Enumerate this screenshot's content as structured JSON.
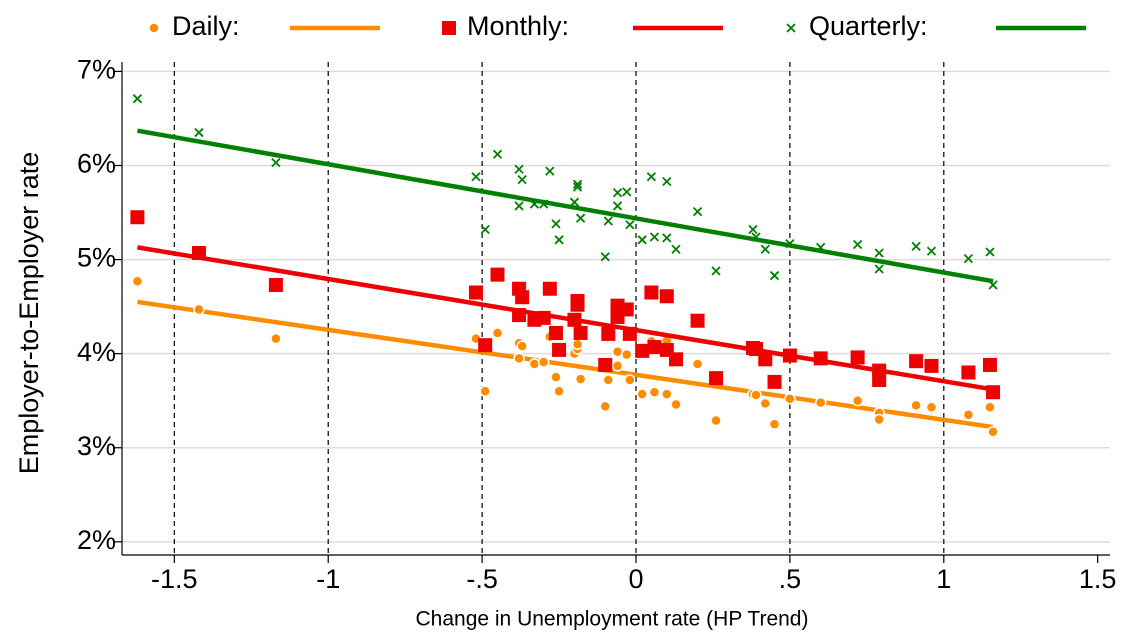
{
  "chart_data": {
    "type": "scatter",
    "x_label": "Change in Unemployment rate (HP Trend)",
    "y_label": "Employer-to-Employer rate",
    "legend": "top",
    "grid": true,
    "xlim": [
      -1.67,
      1.54
    ],
    "ylim": [
      1.86,
      7.1
    ],
    "xticks": [
      -1.5,
      -1,
      {
        "value": -0.5,
        "label": "-.5"
      },
      0,
      {
        "value": 0.5,
        "label": ".5"
      },
      1,
      1.5
    ],
    "yticks": [
      {
        "value": 2,
        "label": "2%"
      },
      {
        "value": 3,
        "label": "3%"
      },
      {
        "value": 4,
        "label": "4%"
      },
      {
        "value": 5,
        "label": "5%"
      },
      {
        "value": 6,
        "label": "6%"
      },
      {
        "value": 7,
        "label": "7%"
      }
    ],
    "vlines": [
      -1.5,
      -1,
      -0.5,
      0,
      0.5,
      1
    ],
    "x": [
      -1.62,
      -1.42,
      -1.17,
      -0.52,
      -0.49,
      -0.45,
      -0.38,
      -0.37,
      -0.38,
      -0.33,
      -0.3,
      -0.28,
      -0.26,
      -0.25,
      -0.2,
      -0.19,
      -0.19,
      -0.18,
      -0.1,
      -0.09,
      -0.06,
      -0.06,
      -0.03,
      -0.02,
      0.02,
      0.05,
      0.06,
      0.1,
      0.1,
      0.13,
      0.2,
      0.26,
      0.38,
      0.39,
      0.42,
      0.45,
      0.5,
      0.6,
      0.72,
      0.79,
      0.79,
      0.91,
      0.96,
      1.08,
      1.15,
      1.16
    ],
    "series": [
      {
        "name": "Daily:",
        "color": "#ff8c00",
        "marker": "circle",
        "values": [
          4.77,
          4.47,
          4.16,
          4.16,
          3.6,
          4.22,
          4.11,
          4.08,
          3.95,
          3.89,
          3.91,
          4.18,
          3.75,
          3.6,
          4.0,
          4.05,
          4.1,
          3.73,
          3.44,
          3.72,
          3.87,
          4.02,
          3.99,
          3.72,
          3.57,
          4.13,
          3.59,
          4.14,
          3.57,
          3.46,
          3.89,
          3.29,
          3.57,
          3.56,
          3.47,
          3.25,
          3.52,
          3.48,
          3.5,
          3.37,
          3.3,
          3.45,
          3.43,
          3.35,
          3.43,
          3.17
        ],
        "fit": {
          "x": [
            -1.62,
            1.16
          ],
          "values": [
            4.55,
            3.22
          ]
        }
      },
      {
        "name": "Monthly:",
        "color": "#ee0000",
        "marker": "square",
        "values": [
          5.45,
          5.07,
          4.73,
          4.65,
          4.09,
          4.84,
          4.69,
          4.6,
          4.41,
          4.36,
          4.38,
          4.69,
          4.22,
          4.04,
          4.36,
          4.52,
          4.56,
          4.22,
          3.88,
          4.21,
          4.39,
          4.51,
          4.47,
          4.21,
          4.03,
          4.65,
          4.07,
          4.61,
          4.04,
          3.94,
          4.35,
          3.74,
          4.06,
          4.05,
          3.94,
          3.7,
          3.98,
          3.95,
          3.96,
          3.82,
          3.72,
          3.92,
          3.87,
          3.8,
          3.88,
          3.59
        ],
        "fit": {
          "x": [
            -1.62,
            1.16
          ],
          "values": [
            5.13,
            3.62
          ]
        }
      },
      {
        "name": "Quarterly:",
        "color": "#008000",
        "marker": "x",
        "values": [
          6.71,
          6.35,
          6.03,
          5.88,
          5.32,
          6.12,
          5.96,
          5.85,
          5.57,
          5.59,
          5.59,
          5.94,
          5.38,
          5.21,
          5.61,
          5.77,
          5.8,
          5.44,
          5.03,
          5.41,
          5.57,
          5.71,
          5.72,
          5.37,
          5.21,
          5.88,
          5.24,
          5.83,
          5.23,
          5.11,
          5.51,
          4.88,
          5.32,
          5.24,
          5.11,
          4.83,
          5.17,
          5.13,
          5.16,
          5.07,
          4.9,
          5.14,
          5.09,
          5.01,
          5.08,
          4.73
        ],
        "fit": {
          "x": [
            -1.62,
            1.16
          ],
          "values": [
            6.37,
            4.77
          ]
        }
      }
    ]
  }
}
